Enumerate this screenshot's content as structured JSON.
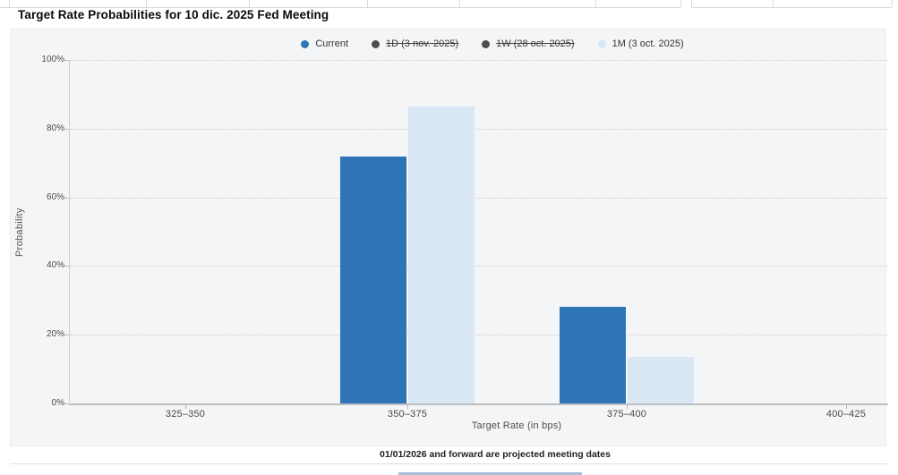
{
  "page": {
    "title": "Target Rate Probabilities for 10 dic. 2025 Fed Meeting",
    "footer_note": "01/01/2026 and forward are projected meeting dates"
  },
  "legend": {
    "items": [
      {
        "label": "Current",
        "color": "#2f74b5",
        "strikethrough": false
      },
      {
        "label": "1D (3 nov. 2025)",
        "color": "#4d4d4d",
        "strikethrough": true
      },
      {
        "label": "1W (28 oct. 2025)",
        "color": "#4d4d4d",
        "strikethrough": true
      },
      {
        "label": "1M (3 oct. 2025)",
        "color": "#d9e7f5",
        "strikethrough": false
      }
    ]
  },
  "chart_data": {
    "type": "bar",
    "title": "Target Rate Probabilities for 10 dic. 2025 Fed Meeting",
    "categories": [
      "325–350",
      "350–375",
      "375–400",
      "400–425"
    ],
    "series": [
      {
        "name": "Current",
        "color": "#2f74b5",
        "values": [
          0,
          71.8,
          28.2,
          0
        ]
      },
      {
        "name": "1M (3 oct. 2025)",
        "color": "#d9e7f5",
        "values": [
          0,
          86.4,
          13.5,
          0
        ]
      }
    ],
    "xlabel": "Target Rate (in bps)",
    "ylabel": "Probability",
    "yticks": [
      "0%",
      "20%",
      "40%",
      "60%",
      "80%",
      "100%"
    ],
    "ylim": [
      0,
      100
    ],
    "grid": "horizontal-dotted",
    "legend_position": "top",
    "footnote": "01/01/2026 and forward are projected meeting dates"
  }
}
